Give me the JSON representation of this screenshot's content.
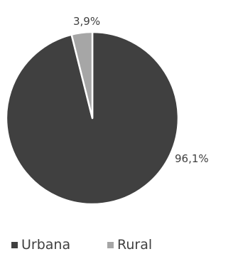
{
  "chart_data": {
    "type": "pie",
    "title": "",
    "categories": [
      "Urbana",
      "Rural"
    ],
    "values": [
      96.1,
      3.9
    ],
    "value_labels": [
      "96,1%",
      "3,9%"
    ],
    "colors": [
      "#404040",
      "#a6a6a6"
    ],
    "label_color": "#404040",
    "legend": {
      "position": "bottom",
      "entries": [
        "Urbana",
        "Rural"
      ]
    }
  }
}
